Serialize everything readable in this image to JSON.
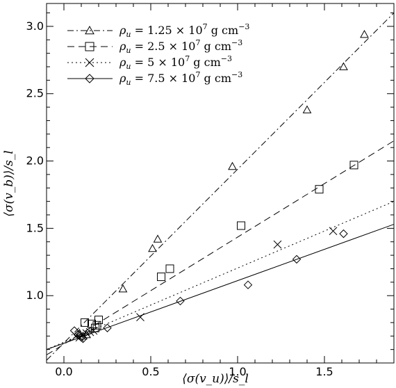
{
  "chart_data": {
    "type": "scatter",
    "xlabel": "⟨σ(v_u)⟩/s_l",
    "ylabel": "⟨σ(v_b)⟩/s_l",
    "xlim": [
      -0.1,
      1.9
    ],
    "ylim": [
      0.5,
      3.17
    ],
    "x_ticks": [
      "0.0",
      "0.5",
      "1.0",
      "1.5"
    ],
    "y_ticks": [
      "1.0",
      "1.5",
      "2.0",
      "2.5",
      "3.0"
    ],
    "x_tick_values": [
      0.0,
      0.5,
      1.0,
      1.5
    ],
    "y_tick_values": [
      1.0,
      1.5,
      2.0,
      2.5,
      3.0
    ],
    "grid": false,
    "legend_position": "top-left",
    "series": [
      {
        "name": "ρu = 1.25 × 10^7 g cm^-3",
        "legend": {
          "sym": "ρ",
          "sub": "u",
          "eq": " = 1.25 × 10",
          "exp": "7",
          "unit": " g cm",
          "unitexp": "−3"
        },
        "marker": "triangle",
        "line_style": "dashdot",
        "fit": [
          [
            -0.1,
            0.52
          ],
          [
            1.9,
            3.1
          ]
        ],
        "points": [
          [
            0.09,
            0.72
          ],
          [
            0.11,
            0.7
          ],
          [
            0.13,
            0.71
          ],
          [
            0.34,
            1.05
          ],
          [
            0.51,
            1.35
          ],
          [
            0.54,
            1.42
          ],
          [
            0.97,
            1.96
          ],
          [
            1.4,
            2.38
          ],
          [
            1.61,
            2.7
          ],
          [
            1.73,
            2.94
          ]
        ]
      },
      {
        "name": "ρu = 2.5 × 10^7 g cm^-3",
        "legend": {
          "sym": "ρ",
          "sub": "u",
          "eq": " = 2.5  × 10",
          "exp": "7",
          "unit": " g cm",
          "unitexp": "−3"
        },
        "marker": "square",
        "line_style": "dashed",
        "fit": [
          [
            -0.1,
            0.56
          ],
          [
            1.9,
            2.15
          ]
        ],
        "points": [
          [
            0.12,
            0.8
          ],
          [
            0.16,
            0.79
          ],
          [
            0.18,
            0.76
          ],
          [
            0.19,
            0.78
          ],
          [
            0.2,
            0.82
          ],
          [
            0.56,
            1.14
          ],
          [
            0.61,
            1.2
          ],
          [
            1.02,
            1.52
          ],
          [
            1.47,
            1.79
          ],
          [
            1.67,
            1.97
          ]
        ]
      },
      {
        "name": "ρu = 5 × 10^7 g cm^-3",
        "legend": {
          "sym": "ρ",
          "sub": "u",
          "eq": " = 5      × 10",
          "exp": "7",
          "unit": " g cm",
          "unitexp": "−3"
        },
        "marker": "x",
        "line_style": "dotted",
        "fit": [
          [
            -0.1,
            0.6
          ],
          [
            1.9,
            1.7
          ]
        ],
        "points": [
          [
            0.07,
            0.7
          ],
          [
            0.09,
            0.69
          ],
          [
            0.11,
            0.71
          ],
          [
            0.13,
            0.72
          ],
          [
            0.15,
            0.73
          ],
          [
            0.17,
            0.74
          ],
          [
            0.44,
            0.84
          ],
          [
            1.23,
            1.38
          ],
          [
            1.55,
            1.48
          ]
        ]
      },
      {
        "name": "ρu = 7.5 × 10^7 g cm^-3",
        "legend": {
          "sym": "ρ",
          "sub": "u",
          "eq": " = 7.5  × 10",
          "exp": "7",
          "unit": " g cm",
          "unitexp": "−3"
        },
        "marker": "diamond",
        "line_style": "solid",
        "fit": [
          [
            -0.1,
            0.6
          ],
          [
            1.9,
            1.53
          ]
        ],
        "points": [
          [
            0.06,
            0.74
          ],
          [
            0.08,
            0.71
          ],
          [
            0.1,
            0.69
          ],
          [
            0.11,
            0.68
          ],
          [
            0.25,
            0.76
          ],
          [
            0.67,
            0.96
          ],
          [
            1.06,
            1.08
          ],
          [
            1.34,
            1.27
          ],
          [
            1.61,
            1.46
          ]
        ]
      }
    ]
  }
}
